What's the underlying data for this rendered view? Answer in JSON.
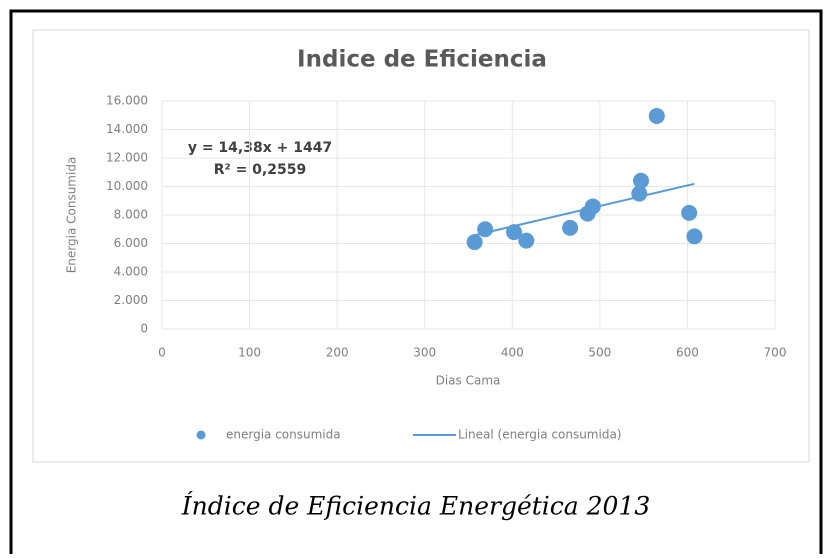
{
  "chart_data": {
    "type": "scatter",
    "title": "Indice de Eficiencia",
    "x_label": "Dias Cama",
    "y_label": "Energia Consumida",
    "caption": "Índice de Eficiencia Energética 2013",
    "series": [
      {
        "name": "energia consumida",
        "color": "#5b9bd5",
        "x": [
          357,
          369,
          402,
          416,
          466,
          486,
          492,
          547,
          545,
          565,
          602,
          608
        ],
        "values": [
          6100,
          7000,
          6800,
          6200,
          7100,
          8100,
          8600,
          10400,
          9500,
          14950,
          8150,
          6500
        ]
      }
    ],
    "trendline": {
      "name": "Lineal (energia consumida)",
      "color": "#5b9bd5",
      "slope": 14.38,
      "intercept": 1447,
      "equation": "y = 14,38x + 1447",
      "r2": "R² = 0,2559"
    },
    "xlim": [
      0,
      700
    ],
    "xticks": [
      0,
      100,
      200,
      300,
      400,
      500,
      600,
      700
    ],
    "ylim": [
      0,
      16000
    ],
    "yticks": [
      0,
      {
        "value": 2000,
        "label": "2.000"
      },
      {
        "value": 4000,
        "label": "4.000"
      },
      {
        "value": 6000,
        "label": "6.000"
      },
      {
        "value": 8000,
        "label": "8.000"
      },
      {
        "value": 10000,
        "label": "10.000"
      },
      {
        "value": 12000,
        "label": "12.000"
      },
      {
        "value": 14000,
        "label": "14.000"
      },
      {
        "value": 16000,
        "label": "16.000"
      }
    ],
    "grid": true,
    "legend": "bottom"
  }
}
